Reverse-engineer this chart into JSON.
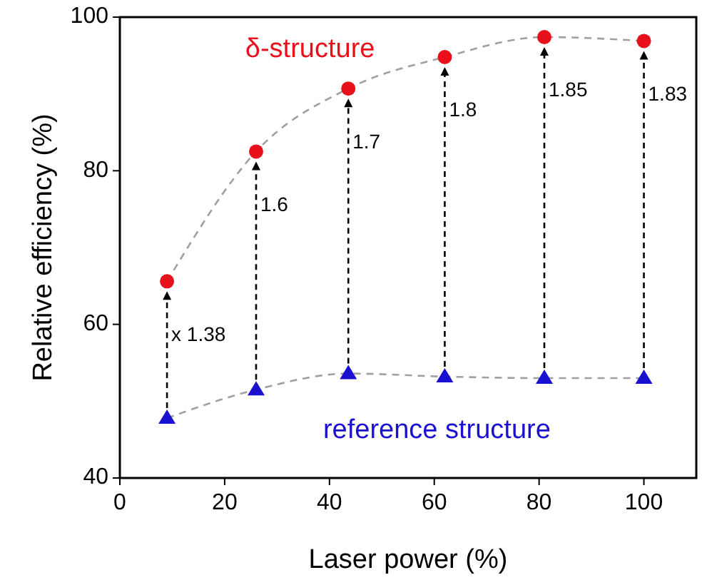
{
  "chart_data": {
    "type": "scatter",
    "xlabel": "Laser power (%)",
    "ylabel": "Relative efficiency (%)",
    "xlim": [
      0,
      110
    ],
    "xticks": [
      0,
      20,
      40,
      60,
      80,
      100
    ],
    "ylim": [
      40,
      100
    ],
    "yticks": [
      40,
      60,
      80,
      100
    ],
    "grid": false,
    "series": [
      {
        "name": "δ-structure",
        "marker": "circle",
        "color": "#e8101a",
        "x": [
          9,
          26,
          43.6,
          62,
          81,
          100
        ],
        "values": [
          65.6,
          82.5,
          90.7,
          94.8,
          97.4,
          96.9
        ]
      },
      {
        "name": "reference structure",
        "marker": "triangle",
        "color": "#1a10d0",
        "x": [
          9,
          26,
          43.6,
          62,
          81,
          100
        ],
        "values": [
          47.8,
          51.5,
          53.6,
          53.2,
          53,
          53
        ]
      },
      {
        "type": "line",
        "line_style": "dashed",
        "marker": "none",
        "color": "#a0a0a0",
        "x": [
          9,
          26,
          43.6,
          62,
          81,
          100
        ],
        "values": [
          65.6,
          82.5,
          90.7,
          94.8,
          97.4,
          96.9
        ]
      },
      {
        "type": "line",
        "line_style": "dashed",
        "marker": "none",
        "color": "#a0a0a0",
        "x": [
          9,
          26,
          43.6,
          62,
          81,
          100
        ],
        "values": [
          47.8,
          51.5,
          53.6,
          53.2,
          53,
          53
        ]
      }
    ],
    "annotations": [
      {
        "text": "x 1.38",
        "x": 9,
        "y": 65.6
      },
      {
        "text": "1.6",
        "x": 26,
        "y": 82.5
      },
      {
        "text": "1.7",
        "x": 43.6,
        "y": 90.7
      },
      {
        "text": "1.8",
        "x": 62,
        "y": 94.8
      },
      {
        "text": "1.85",
        "x": 81,
        "y": 97.4
      },
      {
        "text": "1.83",
        "x": 100,
        "y": 96.9
      }
    ]
  }
}
